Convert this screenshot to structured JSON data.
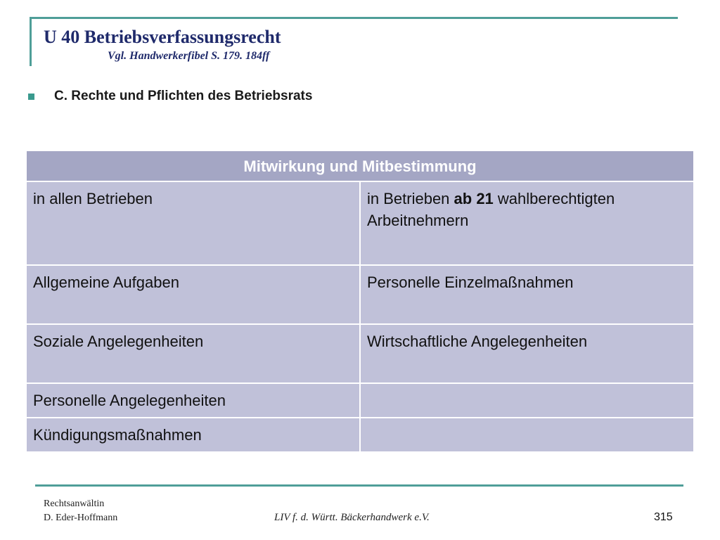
{
  "header": {
    "title": "U 40 Betriebsverfassungsrecht",
    "subtitle": "Vgl. Handwerkerfibel S. 179. 184ff"
  },
  "bullet": {
    "text": "C. Rechte und Pflichten des Betriebsrats"
  },
  "table": {
    "header": "Mitwirkung und Mitbestimmung",
    "rows": [
      {
        "left": "in allen Betrieben",
        "right_pre": "in Betrieben ",
        "right_bold": "ab 21",
        "right_post": " wahlberechtigten Arbeitnehmern"
      },
      {
        "left": "Allgemeine Aufgaben",
        "right": "Personelle Einzelmaßnahmen"
      },
      {
        "left": "Soziale Angelegenheiten",
        "right": "Wirtschaftliche Angelegenheiten"
      },
      {
        "left": "Personelle Angelegenheiten",
        "right": ""
      },
      {
        "left": "Kündigungsmaßnahmen",
        "right": ""
      }
    ]
  },
  "footer": {
    "author_line1": "Rechtsanwältin",
    "author_line2": "D. Eder-Hoffmann",
    "organization": "LIV f. d. Württ. Bäckerhandwerk e.V.",
    "page_number": "315"
  },
  "colors": {
    "accent_line": "#4f9e98",
    "title_color": "#1f2a6b",
    "table_header_bg": "#a4a6c4",
    "table_cell_bg": "#c0c1d9",
    "bullet_color": "#3a9a8e"
  }
}
